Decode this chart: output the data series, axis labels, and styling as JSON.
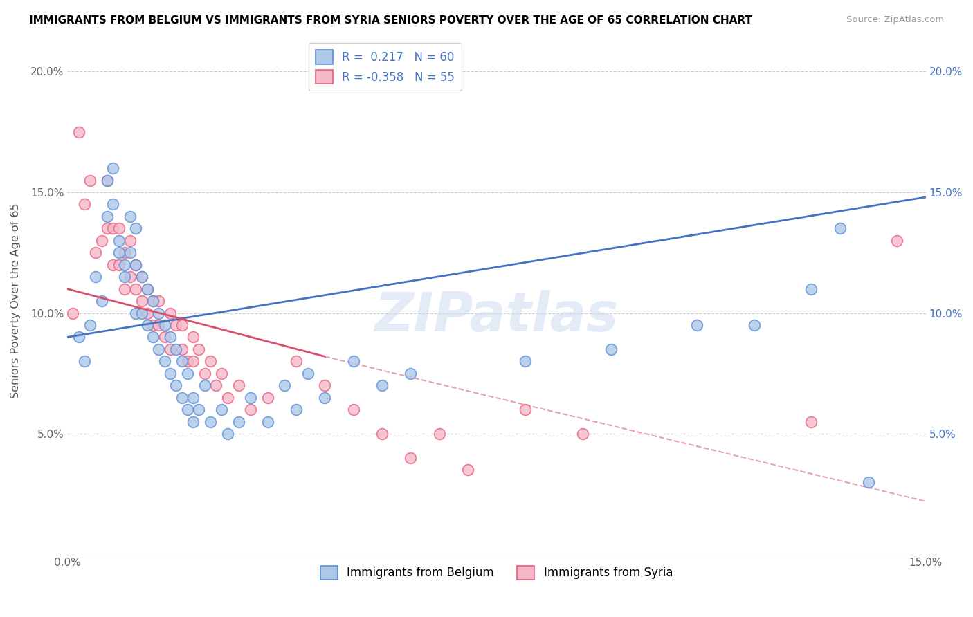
{
  "title": "IMMIGRANTS FROM BELGIUM VS IMMIGRANTS FROM SYRIA SENIORS POVERTY OVER THE AGE OF 65 CORRELATION CHART",
  "source": "Source: ZipAtlas.com",
  "ylabel": "Seniors Poverty Over the Age of 65",
  "xlim": [
    0.0,
    0.15
  ],
  "ylim": [
    0.0,
    0.21
  ],
  "ytick_values": [
    0.0,
    0.05,
    0.1,
    0.15,
    0.2
  ],
  "ytick_labels_left": [
    "",
    "5.0%",
    "10.0%",
    "15.0%",
    "20.0%"
  ],
  "ytick_labels_right": [
    "",
    "5.0%",
    "10.0%",
    "15.0%",
    "20.0%"
  ],
  "xtick_values": [
    0.0,
    0.03,
    0.06,
    0.09,
    0.12,
    0.15
  ],
  "xtick_labels": [
    "0.0%",
    "",
    "",
    "",
    "",
    "15.0%"
  ],
  "belgium_R": "0.217",
  "belgium_N": "60",
  "syria_R": "-0.358",
  "syria_N": "55",
  "belgium_color": "#adc8e8",
  "syria_color": "#f5b8cb",
  "belgium_edge_color": "#5b8dd9",
  "syria_edge_color": "#e8607a",
  "belgium_line_color": "#4472c4",
  "syria_line_color": "#d94f6e",
  "syria_dash_color": "#e8a0b4",
  "watermark": "ZIPatlas",
  "belgium_scatter_x": [
    0.002,
    0.003,
    0.004,
    0.005,
    0.006,
    0.007,
    0.007,
    0.008,
    0.008,
    0.009,
    0.009,
    0.01,
    0.01,
    0.011,
    0.011,
    0.012,
    0.012,
    0.012,
    0.013,
    0.013,
    0.014,
    0.014,
    0.015,
    0.015,
    0.016,
    0.016,
    0.017,
    0.017,
    0.018,
    0.018,
    0.019,
    0.019,
    0.02,
    0.02,
    0.021,
    0.021,
    0.022,
    0.022,
    0.023,
    0.024,
    0.025,
    0.027,
    0.028,
    0.03,
    0.032,
    0.035,
    0.038,
    0.04,
    0.042,
    0.045,
    0.05,
    0.055,
    0.06,
    0.08,
    0.095,
    0.11,
    0.12,
    0.13,
    0.135,
    0.14
  ],
  "belgium_scatter_y": [
    0.09,
    0.08,
    0.095,
    0.115,
    0.105,
    0.155,
    0.14,
    0.16,
    0.145,
    0.13,
    0.125,
    0.12,
    0.115,
    0.14,
    0.125,
    0.135,
    0.12,
    0.1,
    0.115,
    0.1,
    0.11,
    0.095,
    0.105,
    0.09,
    0.1,
    0.085,
    0.095,
    0.08,
    0.09,
    0.075,
    0.085,
    0.07,
    0.08,
    0.065,
    0.075,
    0.06,
    0.065,
    0.055,
    0.06,
    0.07,
    0.055,
    0.06,
    0.05,
    0.055,
    0.065,
    0.055,
    0.07,
    0.06,
    0.075,
    0.065,
    0.08,
    0.07,
    0.075,
    0.08,
    0.085,
    0.095,
    0.095,
    0.11,
    0.135,
    0.03
  ],
  "syria_scatter_x": [
    0.001,
    0.002,
    0.003,
    0.004,
    0.005,
    0.006,
    0.007,
    0.007,
    0.008,
    0.008,
    0.009,
    0.009,
    0.01,
    0.01,
    0.011,
    0.011,
    0.012,
    0.012,
    0.013,
    0.013,
    0.014,
    0.014,
    0.015,
    0.015,
    0.016,
    0.016,
    0.017,
    0.018,
    0.018,
    0.019,
    0.02,
    0.02,
    0.021,
    0.022,
    0.022,
    0.023,
    0.024,
    0.025,
    0.026,
    0.027,
    0.028,
    0.03,
    0.032,
    0.035,
    0.04,
    0.045,
    0.05,
    0.055,
    0.06,
    0.065,
    0.07,
    0.08,
    0.09,
    0.13,
    0.145
  ],
  "syria_scatter_y": [
    0.1,
    0.175,
    0.145,
    0.155,
    0.125,
    0.13,
    0.155,
    0.135,
    0.12,
    0.135,
    0.12,
    0.135,
    0.11,
    0.125,
    0.115,
    0.13,
    0.11,
    0.12,
    0.105,
    0.115,
    0.1,
    0.11,
    0.095,
    0.105,
    0.095,
    0.105,
    0.09,
    0.1,
    0.085,
    0.095,
    0.085,
    0.095,
    0.08,
    0.09,
    0.08,
    0.085,
    0.075,
    0.08,
    0.07,
    0.075,
    0.065,
    0.07,
    0.06,
    0.065,
    0.08,
    0.07,
    0.06,
    0.05,
    0.04,
    0.05,
    0.035,
    0.06,
    0.05,
    0.055,
    0.13
  ]
}
